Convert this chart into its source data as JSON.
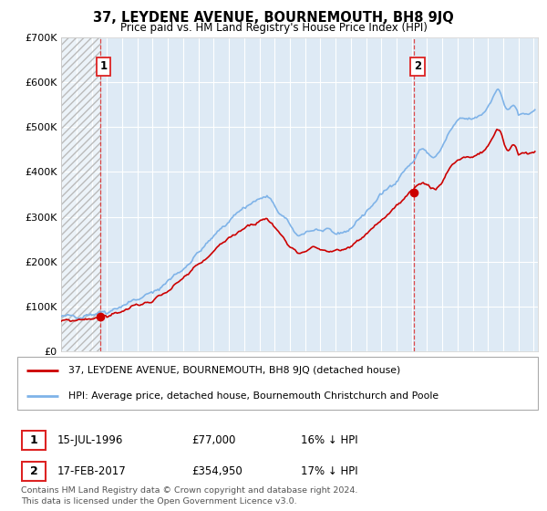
{
  "title": "37, LEYDENE AVENUE, BOURNEMOUTH, BH8 9JQ",
  "subtitle": "Price paid vs. HM Land Registry's House Price Index (HPI)",
  "legend_line1": "37, LEYDENE AVENUE, BOURNEMOUTH, BH8 9JQ (detached house)",
  "legend_line2": "HPI: Average price, detached house, Bournemouth Christchurch and Poole",
  "footnote_line1": "Contains HM Land Registry data © Crown copyright and database right 2024.",
  "footnote_line2": "This data is licensed under the Open Government Licence v3.0.",
  "sale1_date_label": "15-JUL-1996",
  "sale1_price": 77000,
  "sale1_price_label": "£77,000",
  "sale1_pct_label": "16% ↓ HPI",
  "sale1_year": 1996.537,
  "sale2_date_label": "17-FEB-2017",
  "sale2_price": 354950,
  "sale2_price_label": "£354,950",
  "sale2_pct_label": "17% ↓ HPI",
  "sale2_year": 2017.13,
  "ylim_max": 700000,
  "xlim_min": 1994.0,
  "xlim_max": 2025.3,
  "yticks": [
    0,
    100000,
    200000,
    300000,
    400000,
    500000,
    600000,
    700000
  ],
  "ytick_labels": [
    "£0",
    "£100K",
    "£200K",
    "£300K",
    "£400K",
    "£500K",
    "£600K",
    "£700K"
  ],
  "red_color": "#cc0000",
  "blue_color": "#7fb3e8",
  "vline_color": "#dd2222",
  "grid_color": "#cccccc",
  "bg_color": "#deeaf5",
  "hatch_color": "#bbbbbb"
}
